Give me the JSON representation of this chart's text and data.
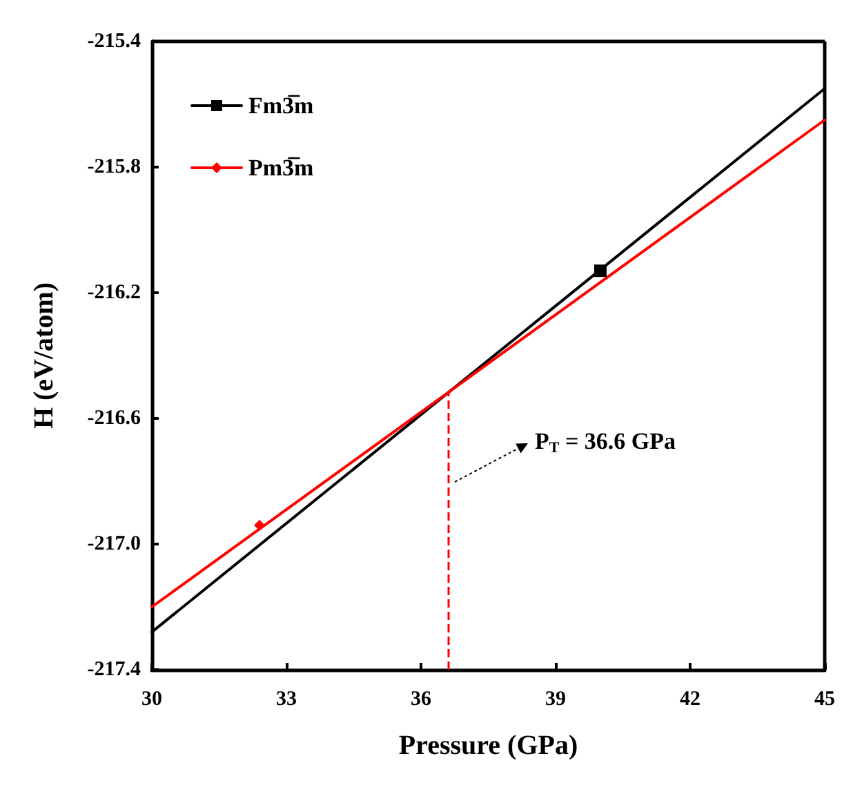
{
  "chart_data": {
    "type": "line",
    "xlabel": "Pressure (GPa)",
    "ylabel": "H (eV/atom)",
    "series": [
      {
        "color": "#000000",
        "marker": "none",
        "x": [
          30,
          45
        ],
        "values": [
          -217.28,
          -215.55
        ]
      },
      {
        "color": "#ff0000",
        "marker": "none",
        "x": [
          30,
          45
        ],
        "values": [
          -217.2,
          -215.65
        ]
      },
      {
        "name": "Fm3̅m",
        "color": "#000000",
        "marker": "square",
        "x": [
          40
        ],
        "values": [
          -216.13
        ]
      },
      {
        "name": "Pm3̅m",
        "color": "#ff0000",
        "marker": "diamond",
        "x": [
          32.4
        ],
        "values": [
          -216.94
        ]
      }
    ],
    "xlim": [
      30,
      45
    ],
    "xticks": [
      30,
      33,
      36,
      39,
      42,
      45
    ],
    "ylim": [
      -217.4,
      -215.4
    ],
    "yticks": [
      -217.4,
      {
        "value": -217,
        "label": "-217.0"
      },
      -216.6,
      -216.2,
      -215.8,
      -215.4
    ],
    "ref_lines": [
      {
        "axis": "x",
        "value": 36.6,
        "label": "P$_{T}$ = 36.6 GPa",
        "color": "#ff0000",
        "line_style": "dashed"
      }
    ],
    "legend": "top left",
    "grid": false,
    "line_style": "solid"
  }
}
